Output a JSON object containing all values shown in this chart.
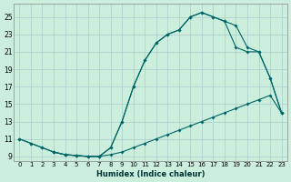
{
  "xlabel": "Humidex (Indice chaleur)",
  "bg_color": "#cceedd",
  "grid_color": "#aacccc",
  "line_color": "#006666",
  "xlim": [
    -0.5,
    23.5
  ],
  "ylim": [
    8.5,
    26.5
  ],
  "xticks": [
    0,
    1,
    2,
    3,
    4,
    5,
    6,
    7,
    8,
    9,
    10,
    11,
    12,
    13,
    14,
    15,
    16,
    17,
    18,
    19,
    20,
    21,
    22,
    23
  ],
  "yticks": [
    9,
    11,
    13,
    15,
    17,
    19,
    21,
    23,
    25
  ],
  "line1_x": [
    0,
    1,
    2,
    3,
    4,
    5,
    6,
    7,
    8,
    9,
    10,
    11,
    12,
    13,
    14,
    15,
    16,
    17,
    18,
    19,
    20,
    21,
    22,
    23
  ],
  "line1_y": [
    11.0,
    10.5,
    10.0,
    9.5,
    9.2,
    9.1,
    9.0,
    9.0,
    9.2,
    9.5,
    10.0,
    10.5,
    11.0,
    11.5,
    12.0,
    12.5,
    13.0,
    13.5,
    14.0,
    14.5,
    15.0,
    15.5,
    16.0,
    14.0
  ],
  "line2_x": [
    0,
    1,
    2,
    3,
    4,
    5,
    6,
    7,
    8,
    9,
    10,
    11,
    12,
    13,
    14,
    15,
    16,
    17,
    18,
    19,
    20,
    21,
    22,
    23
  ],
  "line2_y": [
    11.0,
    10.5,
    10.0,
    9.5,
    9.2,
    9.1,
    9.0,
    9.0,
    10.0,
    13.0,
    17.0,
    20.0,
    22.0,
    23.0,
    23.5,
    25.0,
    25.5,
    25.0,
    24.5,
    24.0,
    21.5,
    21.0,
    18.0,
    14.0
  ],
  "line3_x": [
    3,
    4,
    5,
    6,
    7,
    8,
    9,
    10,
    11,
    12,
    13,
    14,
    15,
    16,
    17,
    18,
    19,
    20,
    21,
    22,
    23
  ],
  "line3_y": [
    9.5,
    9.2,
    9.1,
    9.0,
    9.0,
    10.0,
    13.0,
    17.0,
    20.0,
    22.0,
    23.0,
    23.5,
    25.0,
    25.5,
    25.0,
    24.5,
    21.5,
    21.0,
    21.0,
    18.0,
    14.0
  ]
}
